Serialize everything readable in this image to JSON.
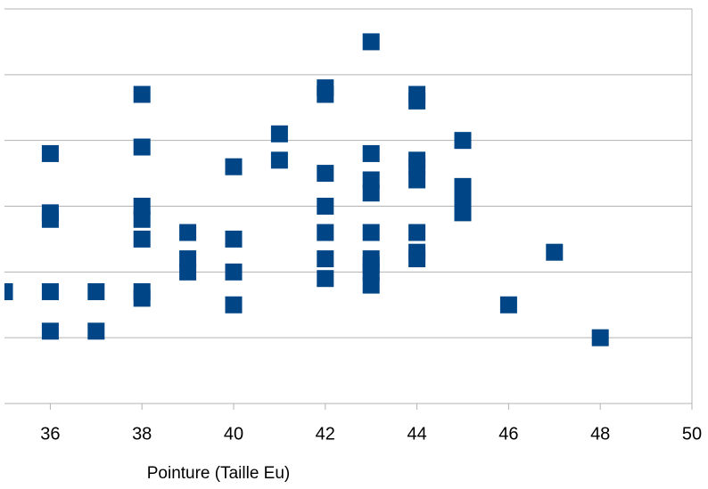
{
  "chart_data": {
    "type": "scatter",
    "x_label": "Pointure (Taille Eu)",
    "x": [
      35,
      36,
      36,
      36,
      36,
      36,
      37,
      37,
      38,
      38,
      38,
      38,
      38,
      38,
      38,
      39,
      39,
      39,
      40,
      40,
      40,
      40,
      41,
      41,
      42,
      42,
      42,
      42,
      42,
      42,
      42,
      43,
      43,
      43,
      43,
      43,
      43,
      43,
      43,
      43,
      44,
      44,
      44,
      44,
      44,
      44,
      44,
      44,
      45,
      45,
      45,
      45,
      46,
      47,
      48
    ],
    "values": [
      167,
      188,
      179,
      178,
      167,
      161,
      167,
      161,
      197,
      189,
      180,
      178,
      175,
      167,
      166,
      176,
      172,
      170,
      186,
      175,
      170,
      165,
      191,
      187,
      198,
      197,
      185,
      180,
      176,
      172,
      169,
      205,
      188,
      184,
      182,
      176,
      172,
      171,
      170,
      168,
      197,
      196,
      187,
      186,
      184,
      176,
      173,
      172,
      190,
      183,
      181,
      179,
      165,
      173,
      160
    ],
    "color": "#004586",
    "xlim": [
      35,
      50
    ],
    "xticks": [
      36,
      38,
      40,
      42,
      44,
      46,
      48,
      50
    ],
    "ylim": [
      150,
      210
    ],
    "yticks": [
      150,
      160,
      170,
      180,
      190,
      200,
      210
    ],
    "grid": true
  }
}
